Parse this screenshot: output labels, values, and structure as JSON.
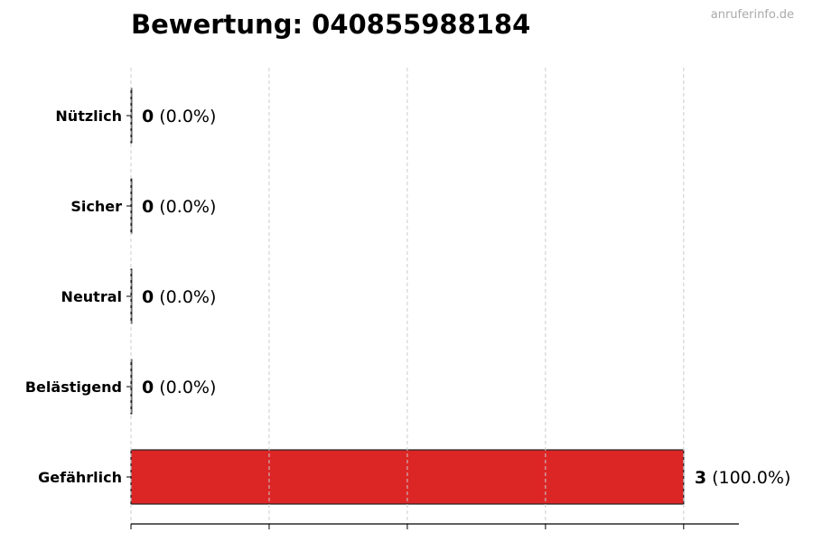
{
  "watermark": "anruferinfo.de",
  "chart_data": {
    "type": "bar",
    "orientation": "horizontal",
    "title": "Bewertung: 040855988184",
    "categories": [
      "Nützlich",
      "Sicher",
      "Neutral",
      "Belästigend",
      "Gefährlich"
    ],
    "values": [
      0,
      0,
      0,
      0,
      3
    ],
    "percent_labels": [
      "(0.0%)",
      "(0.0%)",
      "(0.0%)",
      "(0.0%)",
      "(100.0%)"
    ],
    "colors": [
      "#dc2626",
      "#dc2626",
      "#dc2626",
      "#dc2626",
      "#dc2626"
    ],
    "xlim": [
      0,
      3.3
    ],
    "xticks": [
      0,
      0.75,
      1.5,
      2.25,
      3
    ],
    "xtick_labels_shown": false,
    "grid": "x-dashed",
    "xlabel": "",
    "ylabel": ""
  }
}
